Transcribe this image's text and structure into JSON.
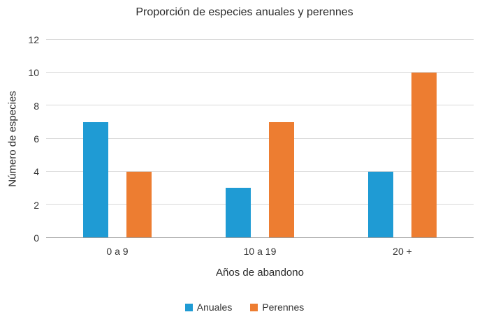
{
  "chart_data": {
    "type": "bar",
    "title": "Proporción de especies anuales y perennes",
    "xlabel": "Años de abandono",
    "ylabel": "Número de especies",
    "categories": [
      "0 a 9",
      "10 a 19",
      "20 +"
    ],
    "series": [
      {
        "name": "Anuales",
        "color": "#1F9BD4",
        "values": [
          7,
          3,
          4
        ]
      },
      {
        "name": "Perennes",
        "color": "#ED7D31",
        "values": [
          4,
          7,
          10
        ]
      }
    ],
    "ylim": [
      0,
      12
    ],
    "yticks": [
      0,
      2,
      4,
      6,
      8,
      10,
      12
    ],
    "grid": true,
    "legend_position": "bottom"
  }
}
